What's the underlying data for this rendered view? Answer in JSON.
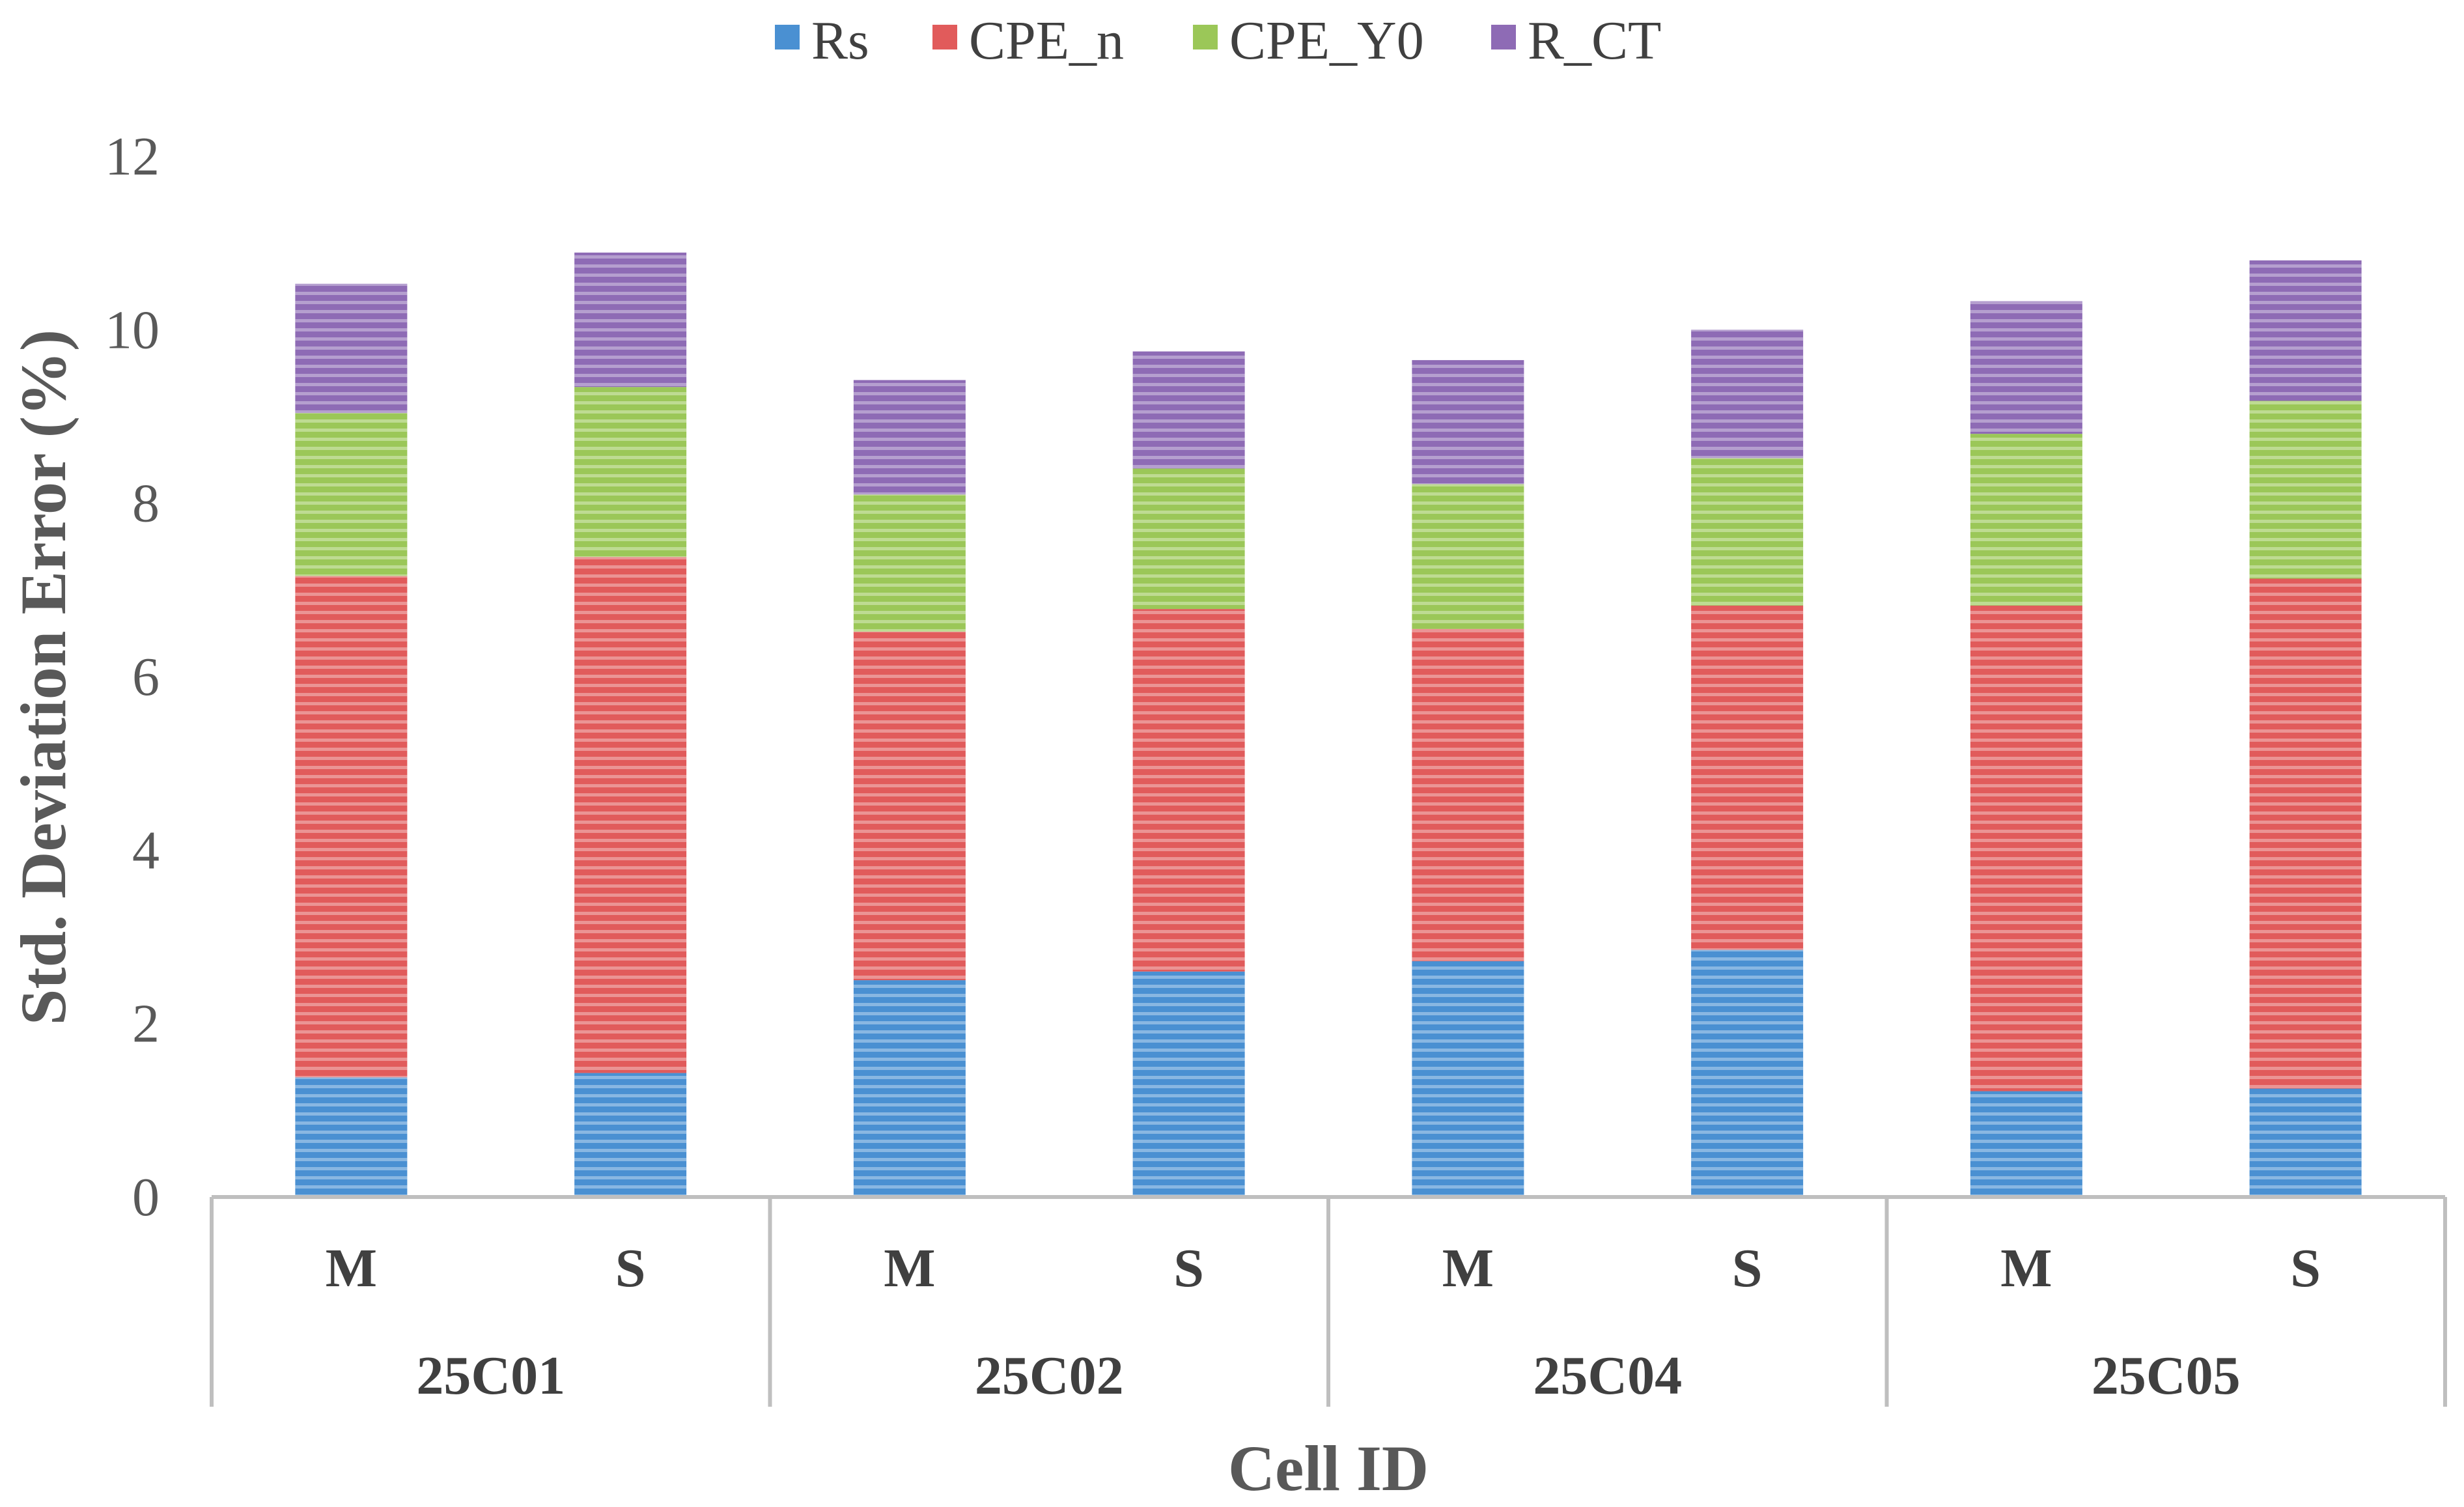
{
  "chart_data": {
    "type": "bar",
    "stacked": true,
    "title": "",
    "xlabel": "Cell ID",
    "ylabel": "Std. Deviation Error (%)",
    "ylim": [
      0,
      12
    ],
    "yticks": [
      0,
      2,
      4,
      6,
      8,
      10,
      12
    ],
    "groups": [
      "25C01",
      "25C02",
      "25C04",
      "25C05"
    ],
    "categories": [
      "M",
      "S",
      "M",
      "S",
      "M",
      "S",
      "M",
      "S"
    ],
    "legend_position": "top-center",
    "series": [
      {
        "name": "Rs",
        "color": "#4a90d2",
        "values": [
          1.38,
          1.43,
          2.5,
          2.6,
          2.72,
          2.85,
          1.22,
          1.25
        ]
      },
      {
        "name": "CPE_n",
        "color": "#e15b5b",
        "values": [
          5.78,
          5.95,
          4.02,
          4.18,
          3.83,
          3.97,
          5.6,
          5.88
        ]
      },
      {
        "name": "CPE_Y0",
        "color": "#9bc758",
        "values": [
          1.88,
          1.96,
          1.58,
          1.62,
          1.67,
          1.7,
          1.98,
          2.05
        ]
      },
      {
        "name": "R_CT",
        "color": "#8e6bb5",
        "values": [
          1.49,
          1.55,
          1.32,
          1.35,
          1.43,
          1.48,
          1.53,
          1.62
        ]
      }
    ]
  }
}
